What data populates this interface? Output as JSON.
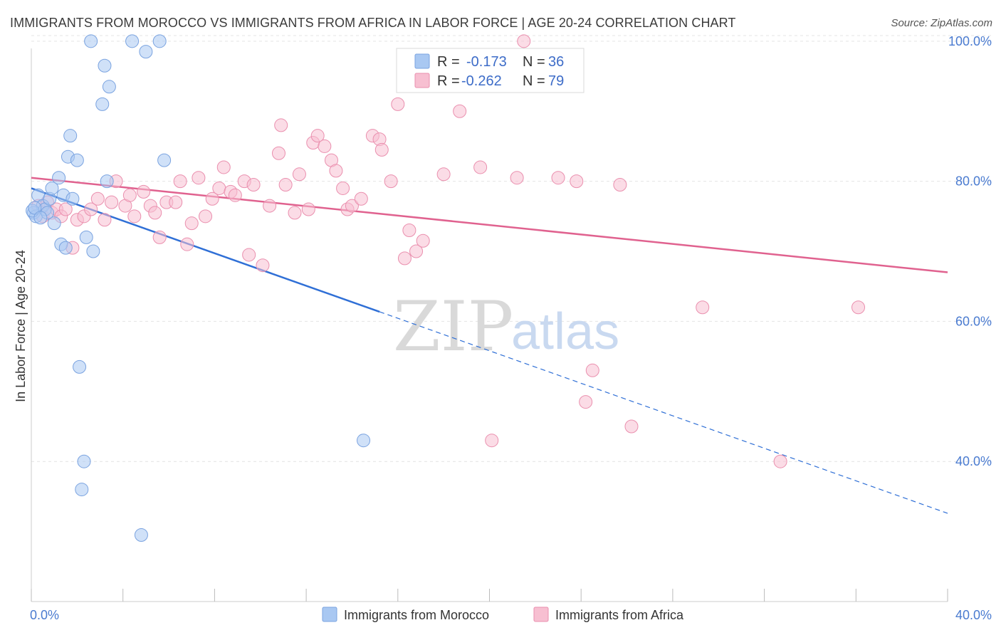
{
  "title": "IMMIGRANTS FROM MOROCCO VS IMMIGRANTS FROM AFRICA IN LABOR FORCE | AGE 20-24 CORRELATION CHART",
  "source": "Source: ZipAtlas.com",
  "watermark": {
    "zip": "ZIP",
    "atlas": "atlas"
  },
  "stats_legend": [
    {
      "r_label": "R =",
      "r_value": "-0.173",
      "n_label": "N =",
      "n_value": "36",
      "color": "#a9c8f2",
      "stroke": "#7aa3e0"
    },
    {
      "r_label": "R =",
      "r_value": "-0.262",
      "n_label": "N =",
      "n_value": "79",
      "color": "#f7bfd1",
      "stroke": "#ea8fae"
    }
  ],
  "chart_data": {
    "type": "scatter",
    "title": "IMMIGRANTS FROM MOROCCO VS IMMIGRANTS FROM AFRICA IN LABOR FORCE | AGE 20-24 CORRELATION CHART",
    "xlabel": "",
    "ylabel": "In Labor Force | Age 20-24",
    "xlim": [
      0,
      40
    ],
    "ylim": [
      20,
      101
    ],
    "x_ticks": [
      0,
      4,
      8,
      12,
      16,
      20,
      24,
      28,
      32,
      36,
      40
    ],
    "x_tick_labels": [
      {
        "value": 0,
        "label": "0.0%"
      },
      {
        "value": 40,
        "label": "40.0%"
      }
    ],
    "y_ticks": [
      {
        "value": 40,
        "label": "40.0%"
      },
      {
        "value": 60,
        "label": "60.0%"
      },
      {
        "value": 80,
        "label": "80.0%"
      },
      {
        "value": 100,
        "label": "100.0%"
      }
    ],
    "grid": true,
    "series": [
      {
        "name": "Immigrants from Morocco",
        "color": "#a9c8f2",
        "stroke": "#7aa3e0",
        "line_color": "#2f6fd6",
        "trend": {
          "x0": 0,
          "y0": 79.0,
          "x1": 40,
          "y1": 32.6,
          "solid_until_x": 15.2
        },
        "points": [
          [
            0.1,
            75.5
          ],
          [
            0.2,
            75.0
          ],
          [
            0.3,
            78.0
          ],
          [
            0.5,
            76.5
          ],
          [
            0.6,
            76.0
          ],
          [
            0.7,
            75.5
          ],
          [
            0.8,
            77.5
          ],
          [
            0.9,
            79.0
          ],
          [
            1.0,
            74.0
          ],
          [
            1.2,
            80.5
          ],
          [
            1.3,
            71.0
          ],
          [
            1.4,
            78.0
          ],
          [
            1.5,
            70.5
          ],
          [
            1.6,
            83.5
          ],
          [
            1.7,
            86.5
          ],
          [
            1.8,
            77.5
          ],
          [
            2.0,
            83.0
          ],
          [
            2.1,
            53.5
          ],
          [
            2.3,
            40.0
          ],
          [
            2.2,
            36.0
          ],
          [
            2.4,
            72.0
          ],
          [
            2.6,
            100.0
          ],
          [
            2.7,
            70.0
          ],
          [
            3.1,
            91.0
          ],
          [
            3.2,
            96.5
          ],
          [
            3.3,
            80.0
          ],
          [
            3.4,
            93.5
          ],
          [
            4.4,
            100.0
          ],
          [
            5.0,
            98.5
          ],
          [
            5.6,
            100.0
          ],
          [
            5.8,
            83.0
          ],
          [
            4.8,
            29.5
          ],
          [
            14.5,
            43.0
          ],
          [
            0.05,
            75.8
          ],
          [
            0.15,
            76.2
          ],
          [
            0.4,
            74.8
          ]
        ]
      },
      {
        "name": "Immigrants from Africa",
        "color": "#f7bfd1",
        "stroke": "#ea8fae",
        "line_color": "#e0628f",
        "trend": {
          "x0": 0,
          "y0": 80.5,
          "x1": 40,
          "y1": 67.0
        },
        "points": [
          [
            0.3,
            76.5
          ],
          [
            0.5,
            75.0
          ],
          [
            0.7,
            77.0
          ],
          [
            0.9,
            75.5
          ],
          [
            1.1,
            76.0
          ],
          [
            1.3,
            75.0
          ],
          [
            1.5,
            76.0
          ],
          [
            1.8,
            70.5
          ],
          [
            2.0,
            74.5
          ],
          [
            2.3,
            75.0
          ],
          [
            2.6,
            76.0
          ],
          [
            2.9,
            77.5
          ],
          [
            3.2,
            74.5
          ],
          [
            3.5,
            77.0
          ],
          [
            3.7,
            80.0
          ],
          [
            4.1,
            76.5
          ],
          [
            4.3,
            78.0
          ],
          [
            4.5,
            75.0
          ],
          [
            4.9,
            78.5
          ],
          [
            5.2,
            76.5
          ],
          [
            5.4,
            75.5
          ],
          [
            5.6,
            72.0
          ],
          [
            5.9,
            77.0
          ],
          [
            6.3,
            77.0
          ],
          [
            6.5,
            80.0
          ],
          [
            6.8,
            71.0
          ],
          [
            7.0,
            74.0
          ],
          [
            7.3,
            80.5
          ],
          [
            7.6,
            75.0
          ],
          [
            7.9,
            77.5
          ],
          [
            8.2,
            79.0
          ],
          [
            8.4,
            82.0
          ],
          [
            8.7,
            78.5
          ],
          [
            8.9,
            78.0
          ],
          [
            9.3,
            80.0
          ],
          [
            9.5,
            69.5
          ],
          [
            9.7,
            79.5
          ],
          [
            10.1,
            68.0
          ],
          [
            10.4,
            76.5
          ],
          [
            10.8,
            84.0
          ],
          [
            10.9,
            88.0
          ],
          [
            11.1,
            79.5
          ],
          [
            11.5,
            75.5
          ],
          [
            11.7,
            81.0
          ],
          [
            12.1,
            76.0
          ],
          [
            12.3,
            85.5
          ],
          [
            12.5,
            86.5
          ],
          [
            12.8,
            85.0
          ],
          [
            13.1,
            83.0
          ],
          [
            13.3,
            81.5
          ],
          [
            13.6,
            79.0
          ],
          [
            13.8,
            76.0
          ],
          [
            14.0,
            76.5
          ],
          [
            14.4,
            77.5
          ],
          [
            14.9,
            86.5
          ],
          [
            15.2,
            86.0
          ],
          [
            15.3,
            84.5
          ],
          [
            15.7,
            80.0
          ],
          [
            16.0,
            91.0
          ],
          [
            16.3,
            69.0
          ],
          [
            16.5,
            73.0
          ],
          [
            16.8,
            70.0
          ],
          [
            17.1,
            71.5
          ],
          [
            17.2,
            94.5
          ],
          [
            18.0,
            81.0
          ],
          [
            18.7,
            90.0
          ],
          [
            19.6,
            82.0
          ],
          [
            20.1,
            43.0
          ],
          [
            21.2,
            80.5
          ],
          [
            23.0,
            80.5
          ],
          [
            23.8,
            80.0
          ],
          [
            24.2,
            48.5
          ],
          [
            24.5,
            53.0
          ],
          [
            25.7,
            79.5
          ],
          [
            26.2,
            45.0
          ],
          [
            29.3,
            62.0
          ],
          [
            32.7,
            40.0
          ],
          [
            36.1,
            62.0
          ],
          [
            21.5,
            100.0
          ]
        ]
      }
    ]
  },
  "bottom_legend": [
    {
      "label": "Immigrants from Morocco",
      "color": "#a9c8f2",
      "stroke": "#7aa3e0"
    },
    {
      "label": "Immigrants from Africa",
      "color": "#f7bfd1",
      "stroke": "#ea8fae"
    }
  ]
}
